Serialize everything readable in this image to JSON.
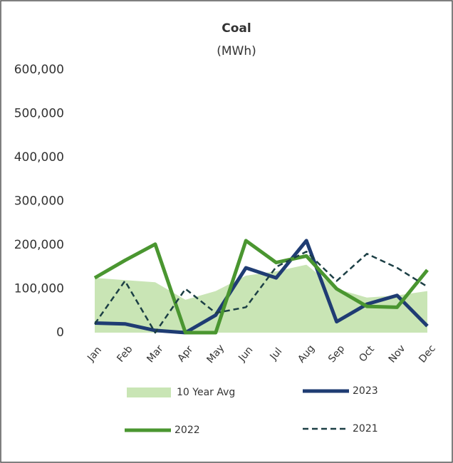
{
  "chart_data": {
    "type": "line",
    "title": "Coal",
    "subtitle": "(MWh)",
    "categories": [
      "Jan",
      "Feb",
      "Mar",
      "Apr",
      "May",
      "Jun",
      "Jul",
      "Aug",
      "Sep",
      "Oct",
      "Nov",
      "Dec"
    ],
    "ylim": [
      0,
      600000
    ],
    "yticks": [
      0,
      {
        "value": 100000,
        "label": "100,000"
      },
      {
        "value": 200000,
        "label": "200,000"
      },
      {
        "value": 300000,
        "label": "300,000"
      },
      {
        "value": 400000,
        "label": "400,000"
      },
      {
        "value": 500000,
        "label": "500,000"
      },
      {
        "value": 600000,
        "label": "600,000"
      }
    ],
    "grid": false,
    "series": [
      {
        "name": "10 Year Avg",
        "color": "#c9e5b5",
        "style": "area",
        "values": [
          125000,
          120000,
          115000,
          75000,
          95000,
          130000,
          140000,
          155000,
          100000,
          80000,
          85000,
          95000
        ]
      },
      {
        "name": "2023",
        "color": "#1f3c73",
        "style": "solid",
        "values": [
          22000,
          20000,
          5000,
          0,
          40000,
          148000,
          125000,
          210000,
          25000,
          65000,
          85000,
          15000
        ]
      },
      {
        "name": "2022",
        "color": "#4a9630",
        "style": "solid",
        "values": [
          125000,
          165000,
          202000,
          0,
          0,
          210000,
          160000,
          175000,
          100000,
          60000,
          58000,
          143000
        ]
      },
      {
        "name": "2021",
        "color": "#1c3f45",
        "style": "dashed",
        "values": [
          20000,
          118000,
          0,
          100000,
          45000,
          58000,
          150000,
          185000,
          118000,
          180000,
          148000,
          105000
        ]
      }
    ]
  }
}
